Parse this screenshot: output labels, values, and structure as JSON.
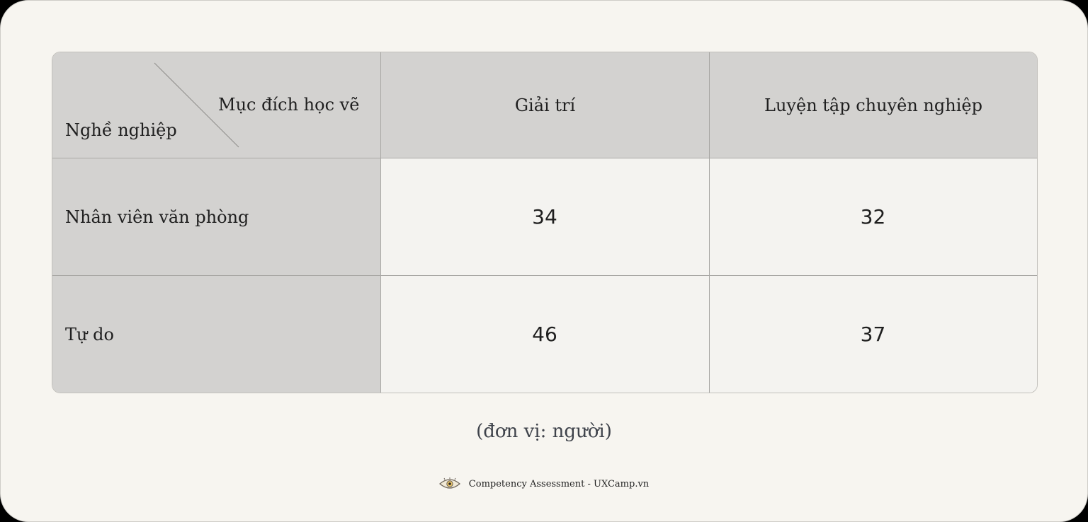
{
  "chart_data": {
    "type": "table",
    "corner": {
      "column_header_label": "Mục đích học vẽ",
      "row_header_label": "Nghề nghiệp"
    },
    "columns": [
      "Giải trí",
      "Luyện tập chuyên nghiệp"
    ],
    "rows": [
      {
        "label": "Nhân viên văn phòng",
        "values": [
          "34",
          "32"
        ]
      },
      {
        "label": "Tự do",
        "values": [
          "46",
          "37"
        ]
      }
    ],
    "unit_note": "(đơn vị: người)"
  },
  "footer": {
    "text": "Competency Assessment - UXCamp.vn",
    "icon": "eye-icon"
  },
  "colors": {
    "background": "#f7f5f0",
    "header_fill": "#d3d2d0",
    "value_fill": "#f4f3f0"
  }
}
